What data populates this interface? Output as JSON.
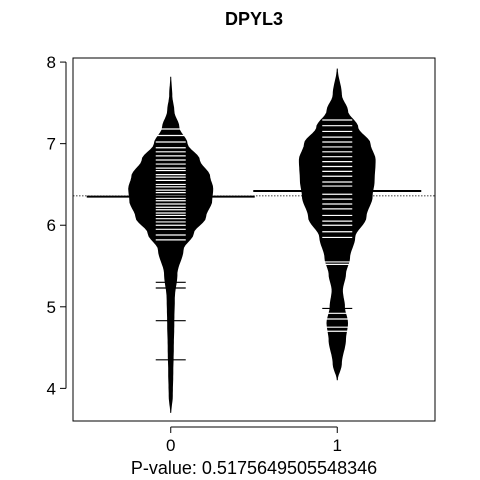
{
  "chart_data": {
    "type": "beanplot",
    "title": "DPYL3",
    "xlabel": "P-value: 0.5175649505548346",
    "ylabel": "",
    "categories": [
      "0",
      "1"
    ],
    "ylim": [
      3.6,
      8.05
    ],
    "yticks": [
      4,
      5,
      6,
      7,
      8
    ],
    "overall_mean": 6.36,
    "grid": false,
    "series": [
      {
        "category": "0",
        "mean": 6.35,
        "range": [
          3.7,
          7.82
        ],
        "density": [
          [
            3.7,
            0.0
          ],
          [
            3.9,
            0.015
          ],
          [
            4.2,
            0.02
          ],
          [
            4.5,
            0.025
          ],
          [
            4.8,
            0.03
          ],
          [
            5.1,
            0.035
          ],
          [
            5.4,
            0.06
          ],
          [
            5.7,
            0.12
          ],
          [
            5.9,
            0.22
          ],
          [
            6.1,
            0.34
          ],
          [
            6.3,
            0.4
          ],
          [
            6.45,
            0.41
          ],
          [
            6.6,
            0.38
          ],
          [
            6.8,
            0.28
          ],
          [
            7.0,
            0.16
          ],
          [
            7.2,
            0.08
          ],
          [
            7.4,
            0.03
          ],
          [
            7.6,
            0.01
          ],
          [
            7.82,
            0.0
          ]
        ],
        "observations": [
          4.35,
          4.83,
          5.23,
          5.3,
          5.82,
          5.88,
          5.95,
          6.0,
          6.04,
          6.08,
          6.12,
          6.15,
          6.19,
          6.22,
          6.26,
          6.3,
          6.33,
          6.36,
          6.4,
          6.43,
          6.47,
          6.5,
          6.55,
          6.59,
          6.62,
          6.67,
          6.7,
          6.75,
          6.8,
          6.85,
          6.9,
          6.95,
          7.02,
          7.1,
          7.18
        ]
      },
      {
        "category": "1",
        "mean": 6.42,
        "range": [
          4.1,
          7.92
        ],
        "density": [
          [
            4.1,
            0.0
          ],
          [
            4.3,
            0.04
          ],
          [
            4.6,
            0.08
          ],
          [
            4.8,
            0.1
          ],
          [
            5.0,
            0.07
          ],
          [
            5.2,
            0.05
          ],
          [
            5.4,
            0.08
          ],
          [
            5.6,
            0.12
          ],
          [
            5.85,
            0.17
          ],
          [
            6.1,
            0.28
          ],
          [
            6.35,
            0.34
          ],
          [
            6.55,
            0.36
          ],
          [
            6.8,
            0.37
          ],
          [
            7.0,
            0.32
          ],
          [
            7.2,
            0.2
          ],
          [
            7.4,
            0.1
          ],
          [
            7.6,
            0.04
          ],
          [
            7.92,
            0.0
          ]
        ],
        "observations": [
          4.7,
          4.75,
          4.85,
          4.92,
          4.98,
          5.52,
          5.55,
          5.85,
          5.92,
          6.0,
          6.05,
          6.12,
          6.2,
          6.26,
          6.32,
          6.38,
          6.42,
          6.48,
          6.53,
          6.6,
          6.66,
          6.72,
          6.78,
          6.84,
          6.9,
          6.96,
          7.02,
          7.08,
          7.15,
          7.22,
          7.29
        ]
      }
    ]
  }
}
